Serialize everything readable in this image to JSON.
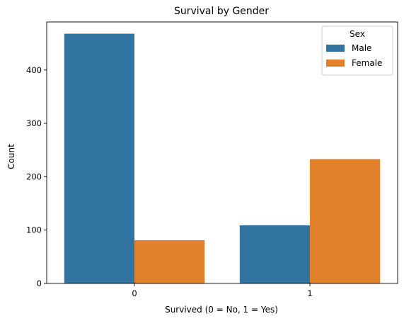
{
  "chart_data": {
    "type": "bar",
    "title": "Survival by Gender",
    "xlabel": "Survived (0 = No, 1 = Yes)",
    "ylabel": "Count",
    "categories": [
      "0",
      "1"
    ],
    "series": [
      {
        "name": "Male",
        "values": [
          468,
          109
        ],
        "color": "#3274a1"
      },
      {
        "name": "Female",
        "values": [
          81,
          233
        ],
        "color": "#e1812c"
      }
    ],
    "ylim": [
      0,
      490
    ],
    "yticks": [
      0,
      100,
      200,
      300,
      400
    ],
    "grid": false,
    "legend": {
      "title": "Sex",
      "placement": "top-right"
    }
  }
}
